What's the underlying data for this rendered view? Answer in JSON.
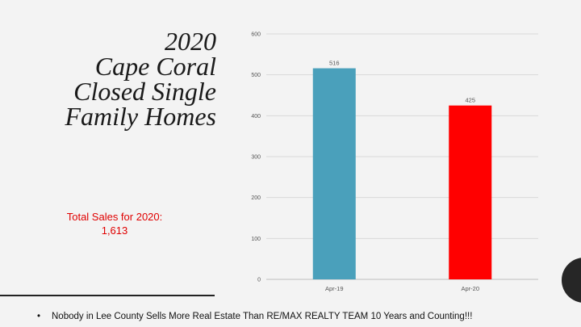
{
  "slide": {
    "title": "2020\nCape Coral\nClosed Single\nFamily Homes",
    "total_sales_label": "Total Sales for 2020:",
    "total_sales_value": "1,613",
    "footer_bullet": "•",
    "footer_text": "Nobody in Lee County Sells More Real Estate Than RE/MAX REALTY TEAM  10 Years and Counting!!!"
  },
  "chart_data": {
    "type": "bar",
    "categories": [
      "Apr-19",
      "Apr-20"
    ],
    "values": [
      516,
      425
    ],
    "data_labels": [
      "516",
      "425"
    ],
    "colors": [
      "#4aa0bb",
      "#ff0000"
    ],
    "ylim": [
      0,
      600
    ],
    "yticks": [
      "0",
      "100",
      "200",
      "300",
      "400",
      "500",
      "600"
    ],
    "grid": true,
    "legend": "none"
  }
}
